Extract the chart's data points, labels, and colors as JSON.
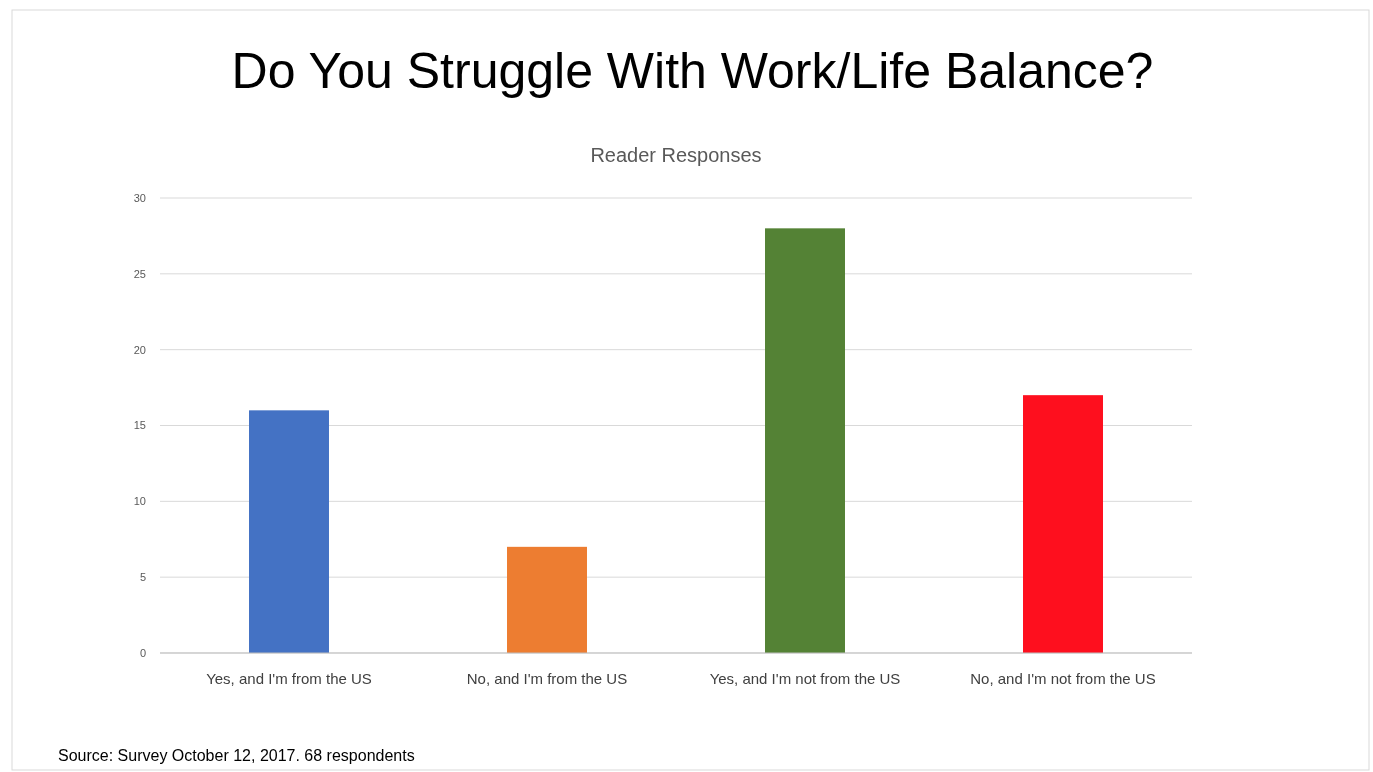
{
  "chart_data": {
    "type": "bar",
    "title": "Do You Struggle With Work/Life Balance?",
    "subtitle": "Reader Responses",
    "categories": [
      "Yes, and I'm from the US",
      "No, and I'm from the US",
      "Yes, and I'm not from the US",
      "No, and I'm not from the US"
    ],
    "values": [
      16,
      7,
      28,
      17
    ],
    "colors": [
      "#4472c4",
      "#ed7d31",
      "#548235",
      "#fe0f1e"
    ],
    "ylim": [
      0,
      30
    ],
    "yticks": [
      0,
      5,
      10,
      15,
      20,
      25,
      30
    ],
    "grid": "y",
    "annotations": [
      "Source: Survey October 12, 2017. 68 respondents"
    ]
  }
}
